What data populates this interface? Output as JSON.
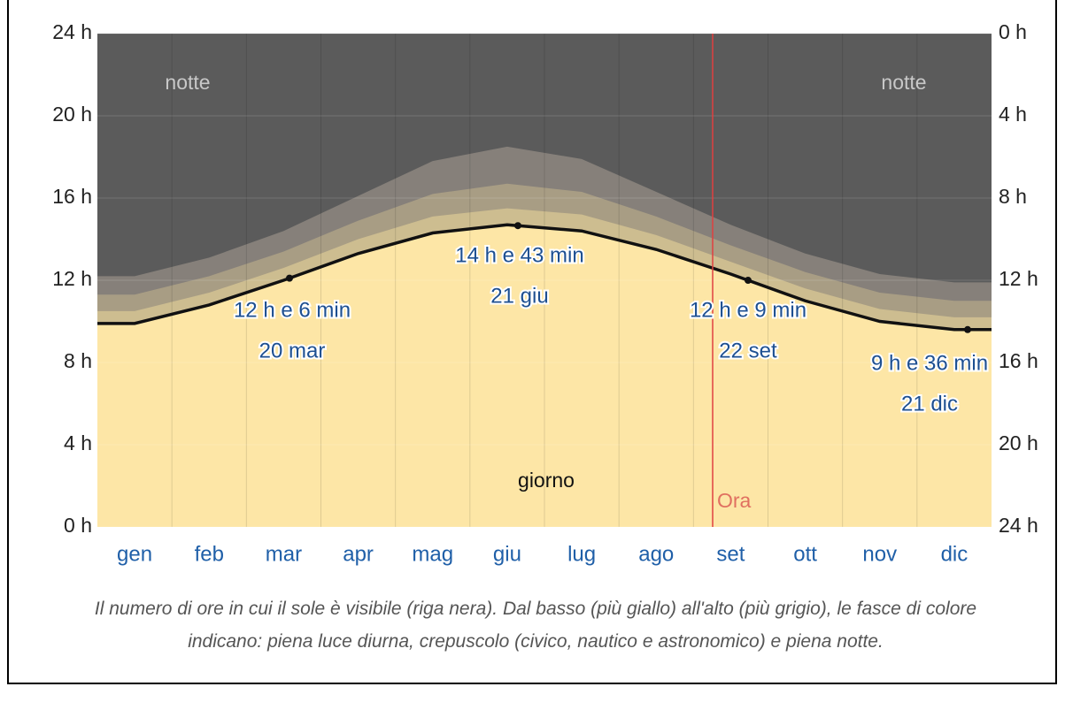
{
  "chart_data": {
    "type": "daylight",
    "categories": [
      "gen",
      "feb",
      "mar",
      "apr",
      "mag",
      "giu",
      "lug",
      "ago",
      "set",
      "ott",
      "nov",
      "dic"
    ],
    "series": [
      {
        "color": "#fde6a6",
        "values": [
          9.9,
          10.8,
          12.0,
          13.3,
          14.3,
          14.7,
          14.4,
          13.5,
          12.3,
          11.0,
          10.0,
          9.6
        ]
      },
      {
        "color": "#cdbd90",
        "values": [
          0.6,
          0.6,
          0.6,
          0.7,
          0.8,
          0.8,
          0.8,
          0.7,
          0.6,
          0.6,
          0.6,
          0.6
        ]
      },
      {
        "color": "#a89d84",
        "values": [
          0.8,
          0.8,
          0.8,
          0.9,
          1.1,
          1.2,
          1.1,
          0.9,
          0.8,
          0.8,
          0.8,
          0.8
        ]
      },
      {
        "color": "#86807a",
        "values": [
          0.9,
          0.9,
          1.0,
          1.2,
          1.6,
          1.8,
          1.6,
          1.2,
          1.0,
          0.9,
          0.9,
          0.9
        ]
      }
    ],
    "night_color": "#5b5b5b",
    "line_color": "#111111",
    "ylim": [
      0,
      24
    ],
    "yticks": [
      {
        "value": 0,
        "label": "0 h"
      },
      {
        "value": 4,
        "label": "4 h"
      },
      {
        "value": 8,
        "label": "8 h"
      },
      {
        "value": 12,
        "label": "12 h"
      },
      {
        "value": 16,
        "label": "16 h"
      },
      {
        "value": 20,
        "label": "20 h"
      },
      {
        "value": 24,
        "label": "24 h"
      }
    ],
    "y2lim": [
      24,
      0
    ],
    "y2ticks": [
      {
        "value": 0,
        "label": "0 h"
      },
      {
        "value": 4,
        "label": "4 h"
      },
      {
        "value": 8,
        "label": "8 h"
      },
      {
        "value": 12,
        "label": "12 h"
      },
      {
        "value": 16,
        "label": "16 h"
      },
      {
        "value": 20,
        "label": "20 h"
      },
      {
        "value": 24,
        "label": "24 h"
      }
    ],
    "grid": true,
    "annotations": [
      {
        "text": "12 h e 6 min",
        "date": "20 mar"
      },
      {
        "text": "14 h e 43 min",
        "date": "21 giu"
      },
      {
        "text": "12 h e 9 min",
        "date": "22 set"
      },
      {
        "text": "9 h e 36 min",
        "date": "21 dic"
      }
    ],
    "night_label": "notte",
    "day_label": "giorno",
    "now_label": "Ora",
    "caption": "Il numero di ore in cui il sole è visibile (riga nera). Dal basso (più giallo) all'alto (più grigio), le fasce di colore indicano: piena luce diurna, crepuscolo (civico, nautico e astronomico) e piena notte."
  }
}
